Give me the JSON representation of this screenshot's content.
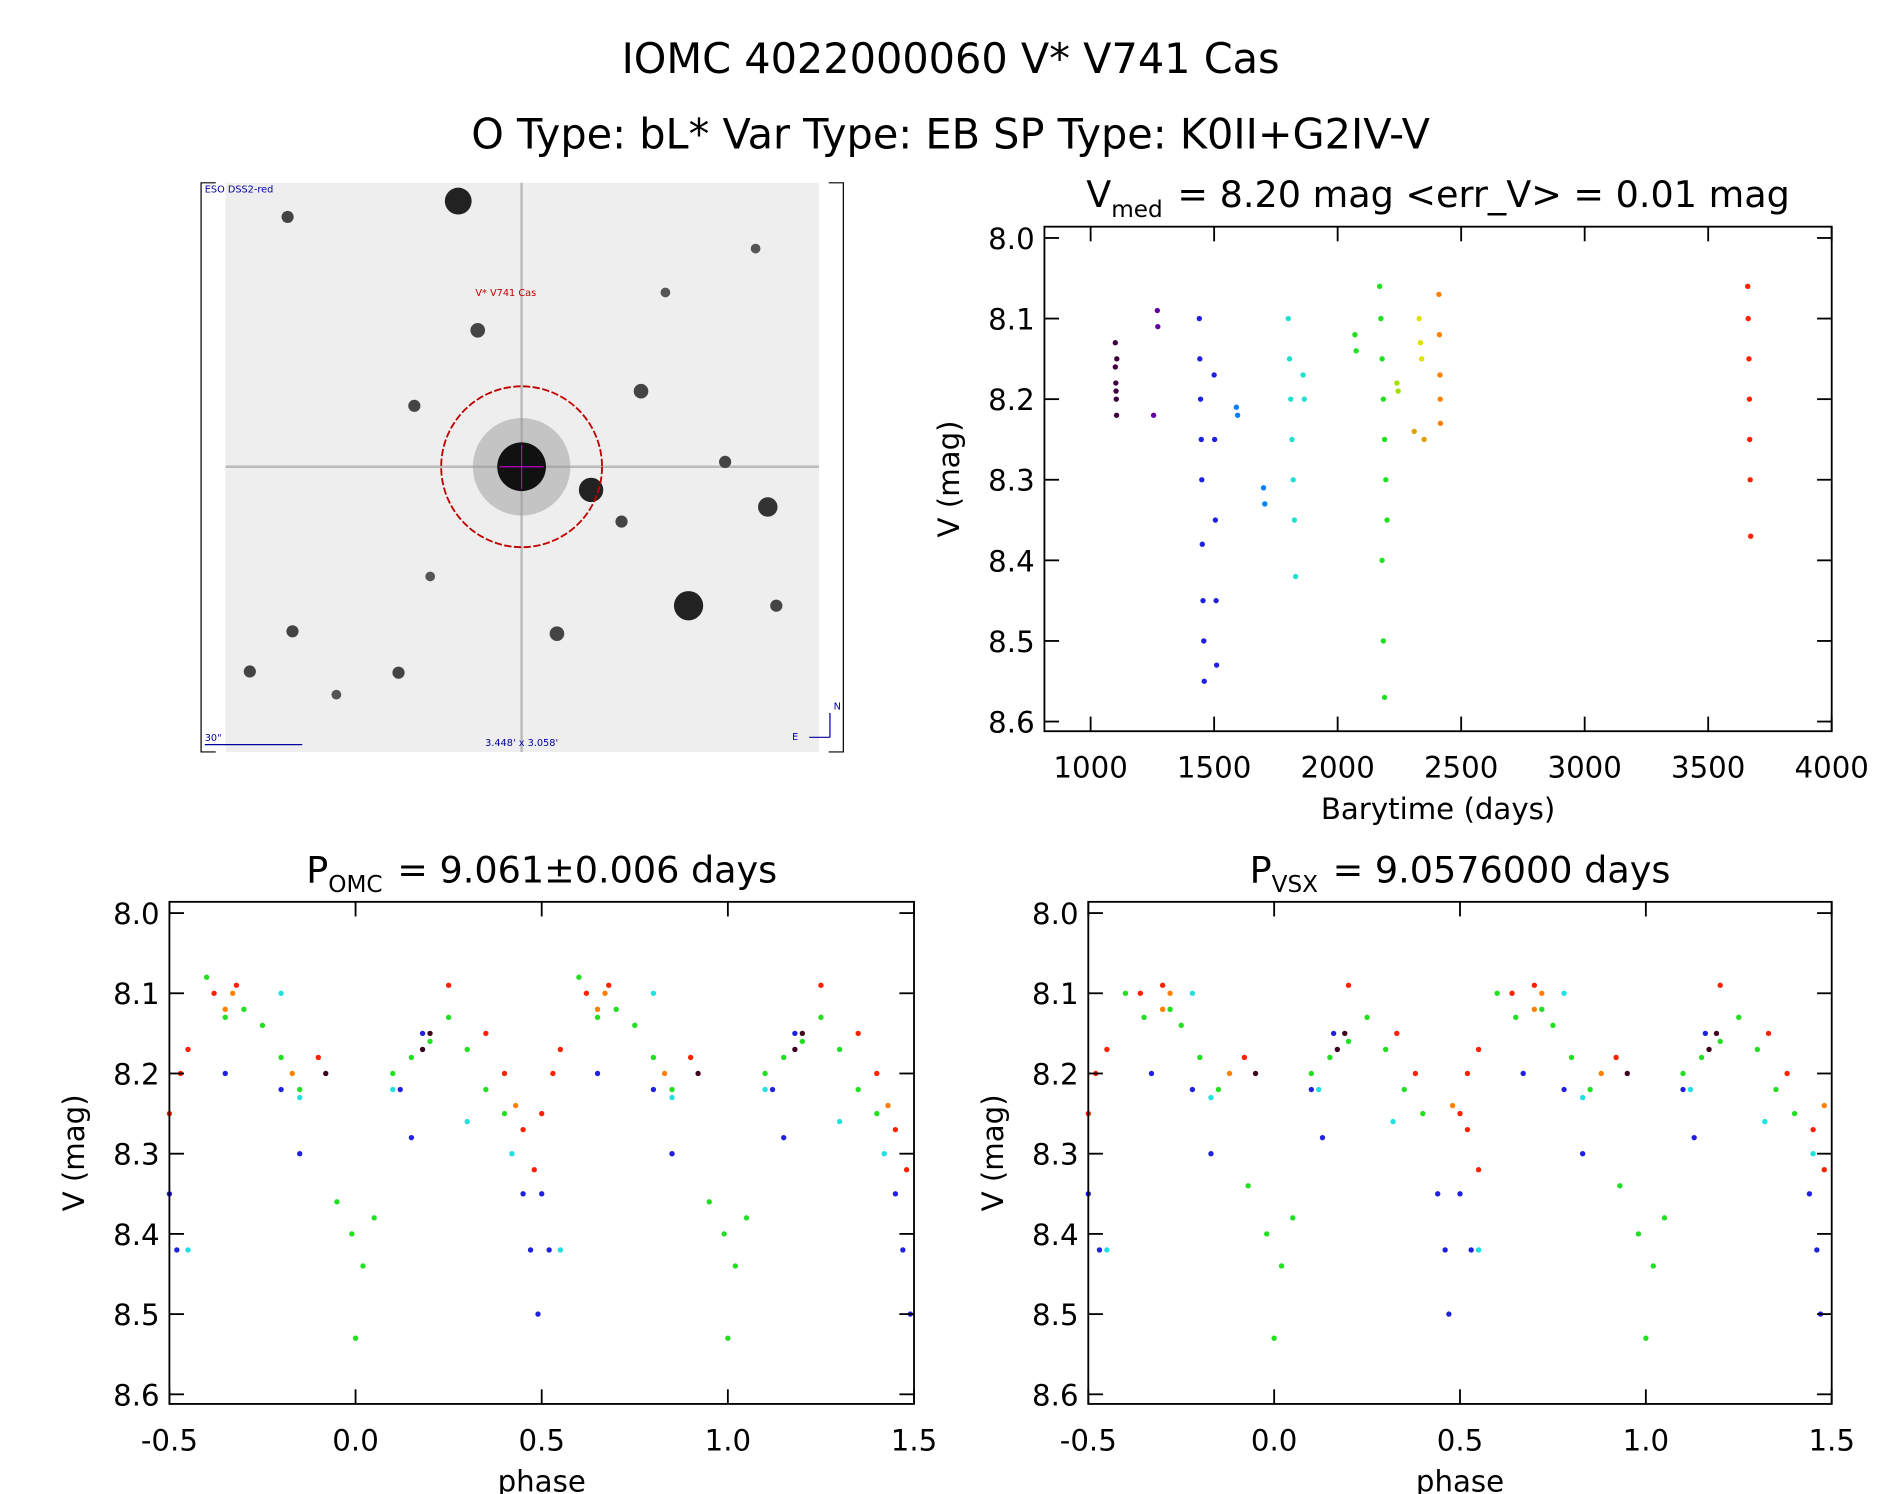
{
  "header": {
    "title": "IOMC 4022000060   V* V741 Cas",
    "subtitle": "O Type: bL*  Var Type: EB  SP Type: K0II+G2IV-V"
  },
  "finder": {
    "survey": "ESO DSS2-red",
    "target": "V* V741 Cas",
    "scale": "30\"",
    "field": "3.448' x 3.058'",
    "north": "N",
    "east": "E"
  },
  "chart_data": [
    {
      "type": "scatter",
      "title": {
        "text": "V",
        "sub": "med",
        "rest": "= 8.20 mag <err_V> = 0.01 mag"
      },
      "x_label": "Barytime (days)",
      "y_label": "V (mag)",
      "xlim": [
        813,
        4000
      ],
      "ylim": [
        8.612,
        7.986
      ],
      "xticks": [
        1000,
        1500,
        2000,
        2500,
        3000,
        3500,
        4000
      ],
      "yticks": [
        {
          "value": 8,
          "label": "8.0"
        },
        8.1,
        8.2,
        8.3,
        8.4,
        8.5,
        8.6
      ],
      "series": [
        {
          "color": "#400040",
          "x": [
            1100,
            1100,
            1102,
            1104,
            1105,
            1106,
            1103
          ],
          "values": [
            8.13,
            8.16,
            8.18,
            8.2,
            8.22,
            8.15,
            8.19
          ]
        },
        {
          "color": "#6000a0",
          "x": [
            1255,
            1270,
            1272
          ],
          "values": [
            8.22,
            8.09,
            8.11
          ]
        },
        {
          "color": "#2020e0",
          "x": [
            1440,
            1442,
            1445,
            1448,
            1450,
            1452,
            1455,
            1458,
            1460,
            1500,
            1502,
            1505,
            1508,
            1510
          ],
          "values": [
            8.1,
            8.15,
            8.2,
            8.25,
            8.3,
            8.38,
            8.45,
            8.5,
            8.55,
            8.17,
            8.25,
            8.35,
            8.45,
            8.53
          ]
        },
        {
          "color": "#0080ff",
          "x": [
            1590,
            1595,
            1700,
            1705
          ],
          "values": [
            8.21,
            8.22,
            8.31,
            8.33
          ]
        },
        {
          "color": "#20e0d0",
          "x": [
            1800,
            1805,
            1810,
            1815,
            1820,
            1825,
            1830,
            1860,
            1865
          ],
          "values": [
            8.1,
            8.15,
            8.2,
            8.25,
            8.3,
            8.35,
            8.42,
            8.17,
            8.2
          ]
        },
        {
          "color": "#20e020",
          "x": [
            2070,
            2075,
            2170,
            2175,
            2180,
            2185,
            2190,
            2195,
            2200,
            2180,
            2185,
            2190
          ],
          "values": [
            8.12,
            8.14,
            8.06,
            8.1,
            8.15,
            8.2,
            8.25,
            8.3,
            8.35,
            8.4,
            8.5,
            8.57
          ]
        },
        {
          "color": "#a0e000",
          "x": [
            2240,
            2245
          ],
          "values": [
            8.18,
            8.19
          ]
        },
        {
          "color": "#e0e000",
          "x": [
            2330,
            2335,
            2340
          ],
          "values": [
            8.1,
            8.13,
            8.15
          ]
        },
        {
          "color": "#e0a000",
          "x": [
            2310,
            2350
          ],
          "values": [
            8.24,
            8.25
          ]
        },
        {
          "color": "#ff8000",
          "x": [
            2410,
            2412,
            2414,
            2415,
            2416
          ],
          "values": [
            8.07,
            8.12,
            8.17,
            8.2,
            8.23
          ]
        },
        {
          "color": "#ff2000",
          "x": [
            3660,
            3662,
            3665,
            3667,
            3668,
            3670,
            3672
          ],
          "values": [
            8.06,
            8.1,
            8.15,
            8.2,
            8.25,
            8.3,
            8.37
          ]
        }
      ]
    },
    {
      "type": "scatter",
      "title": {
        "text": "P",
        "sub": "OMC",
        "rest": "= 9.061±0.006 days"
      },
      "x_label": "phase",
      "y_label": "V (mag)",
      "xlim": [
        -0.5,
        1.5
      ],
      "ylim": [
        8.612,
        7.986
      ],
      "xticks": [
        -0.5,
        {
          "value": 0,
          "label": "0.0"
        },
        0.5,
        {
          "value": 1,
          "label": "1.0"
        },
        1.5
      ],
      "yticks": [
        {
          "value": 8,
          "label": "8.0"
        },
        8.1,
        8.2,
        8.3,
        8.4,
        8.5,
        8.6
      ],
      "series": [
        {
          "color": "#20e020",
          "x": [
            -0.4,
            -0.35,
            -0.3,
            -0.25,
            -0.2,
            -0.15,
            -0.05,
            -0.01,
            0,
            0.02,
            0.05,
            0.1,
            0.15,
            0.2,
            0.25,
            0.3,
            0.35,
            0.4,
            0.6,
            0.65,
            0.7,
            0.75,
            0.8,
            0.85,
            0.95,
            0.99,
            1,
            1.02,
            1.05,
            1.1,
            1.15,
            1.2,
            1.25,
            1.3,
            1.35,
            1.4
          ],
          "values": [
            8.08,
            8.13,
            8.12,
            8.14,
            8.18,
            8.22,
            8.36,
            8.4,
            8.53,
            8.44,
            8.38,
            8.2,
            8.18,
            8.16,
            8.13,
            8.17,
            8.22,
            8.25,
            8.08,
            8.13,
            8.12,
            8.14,
            8.18,
            8.22,
            8.36,
            8.4,
            8.53,
            8.44,
            8.38,
            8.2,
            8.18,
            8.16,
            8.13,
            8.17,
            8.22,
            8.25
          ]
        },
        {
          "color": "#ff2000",
          "x": [
            -0.5,
            -0.47,
            -0.45,
            -0.38,
            -0.32,
            -0.1,
            0.25,
            0.35,
            0.4,
            0.45,
            0.48,
            0.5,
            0.53,
            0.55,
            0.62,
            0.68,
            0.9,
            1.25,
            1.35,
            1.4,
            1.45,
            1.48
          ],
          "values": [
            8.25,
            8.2,
            8.17,
            8.1,
            8.09,
            8.18,
            8.09,
            8.15,
            8.2,
            8.27,
            8.32,
            8.25,
            8.2,
            8.17,
            8.1,
            8.09,
            8.18,
            8.09,
            8.15,
            8.2,
            8.27,
            8.32
          ]
        },
        {
          "color": "#2020e0",
          "x": [
            -0.5,
            -0.48,
            -0.35,
            -0.2,
            -0.15,
            0.12,
            0.15,
            0.18,
            0.45,
            0.47,
            0.49,
            0.5,
            0.52,
            0.65,
            0.8,
            0.85,
            1.12,
            1.15,
            1.18,
            1.45,
            1.47,
            1.49
          ],
          "values": [
            8.35,
            8.42,
            8.2,
            8.22,
            8.3,
            8.22,
            8.28,
            8.15,
            8.35,
            8.42,
            8.5,
            8.35,
            8.42,
            8.2,
            8.22,
            8.3,
            8.22,
            8.28,
            8.15,
            8.35,
            8.42,
            8.5
          ]
        },
        {
          "color": "#20e0e0",
          "x": [
            -0.45,
            -0.2,
            -0.15,
            0.1,
            0.3,
            0.42,
            0.55,
            0.8,
            0.85,
            1.1,
            1.3,
            1.42
          ],
          "values": [
            8.42,
            8.1,
            8.23,
            8.22,
            8.26,
            8.3,
            8.42,
            8.1,
            8.23,
            8.22,
            8.26,
            8.3
          ]
        },
        {
          "color": "#ff8000",
          "x": [
            -0.35,
            -0.33,
            -0.17,
            0.43,
            0.65,
            0.67,
            0.83,
            1.43
          ],
          "values": [
            8.12,
            8.1,
            8.2,
            8.24,
            8.12,
            8.1,
            8.2,
            8.24
          ]
        },
        {
          "color": "#400020",
          "x": [
            -0.08,
            0.18,
            0.2,
            0.92,
            1.18,
            1.2
          ],
          "values": [
            8.2,
            8.17,
            8.15,
            8.2,
            8.17,
            8.15
          ]
        }
      ]
    },
    {
      "type": "scatter",
      "title": {
        "text": "P",
        "sub": "VSX",
        "rest": "= 9.0576000 days"
      },
      "x_label": "phase",
      "y_label": "V (mag)",
      "xlim": [
        -0.5,
        1.5
      ],
      "ylim": [
        8.612,
        7.986
      ],
      "xticks": [
        -0.5,
        {
          "value": 0,
          "label": "0.0"
        },
        0.5,
        {
          "value": 1,
          "label": "1.0"
        },
        1.5
      ],
      "yticks": [
        {
          "value": 8,
          "label": "8.0"
        },
        8.1,
        8.2,
        8.3,
        8.4,
        8.5,
        8.6
      ],
      "series": [
        {
          "color": "#20e020",
          "x": [
            -0.4,
            -0.35,
            -0.28,
            -0.25,
            -0.2,
            -0.15,
            -0.07,
            -0.02,
            0,
            0.02,
            0.05,
            0.1,
            0.15,
            0.2,
            0.25,
            0.3,
            0.35,
            0.4,
            0.6,
            0.65,
            0.72,
            0.75,
            0.8,
            0.85,
            0.93,
            0.98,
            1,
            1.02,
            1.05,
            1.1,
            1.15,
            1.2,
            1.25,
            1.3,
            1.35,
            1.4
          ],
          "values": [
            8.1,
            8.13,
            8.12,
            8.14,
            8.18,
            8.22,
            8.34,
            8.4,
            8.53,
            8.44,
            8.38,
            8.2,
            8.18,
            8.16,
            8.13,
            8.17,
            8.22,
            8.25,
            8.1,
            8.13,
            8.12,
            8.14,
            8.18,
            8.22,
            8.34,
            8.4,
            8.53,
            8.44,
            8.38,
            8.2,
            8.18,
            8.16,
            8.13,
            8.17,
            8.22,
            8.25
          ]
        },
        {
          "color": "#ff2000",
          "x": [
            -0.5,
            -0.48,
            -0.45,
            -0.36,
            -0.3,
            -0.08,
            0.2,
            0.33,
            0.38,
            0.52,
            0.55,
            0.5,
            0.52,
            0.55,
            0.64,
            0.7,
            0.92,
            1.2,
            1.33,
            1.38,
            1.45,
            1.48
          ],
          "values": [
            8.25,
            8.2,
            8.17,
            8.1,
            8.09,
            8.18,
            8.09,
            8.15,
            8.2,
            8.27,
            8.32,
            8.25,
            8.2,
            8.17,
            8.1,
            8.09,
            8.18,
            8.09,
            8.15,
            8.2,
            8.27,
            8.32
          ]
        },
        {
          "color": "#2020e0",
          "x": [
            -0.5,
            -0.47,
            -0.33,
            -0.22,
            -0.17,
            0.1,
            0.13,
            0.16,
            0.44,
            0.46,
            0.47,
            0.5,
            0.53,
            0.67,
            0.78,
            0.83,
            1.1,
            1.13,
            1.16,
            1.44,
            1.46,
            1.47
          ],
          "values": [
            8.35,
            8.42,
            8.2,
            8.22,
            8.3,
            8.22,
            8.28,
            8.15,
            8.35,
            8.42,
            8.5,
            8.35,
            8.42,
            8.2,
            8.22,
            8.3,
            8.22,
            8.28,
            8.15,
            8.35,
            8.42,
            8.5
          ]
        },
        {
          "color": "#20e0e0",
          "x": [
            -0.45,
            -0.22,
            -0.17,
            0.12,
            0.32,
            0.55,
            0.55,
            0.78,
            0.83,
            1.12,
            1.32,
            1.45
          ],
          "values": [
            8.42,
            8.1,
            8.23,
            8.22,
            8.26,
            8.42,
            8.42,
            8.1,
            8.23,
            8.22,
            8.26,
            8.3
          ]
        },
        {
          "color": "#ff8000",
          "x": [
            -0.3,
            -0.28,
            -0.12,
            0.48,
            0.7,
            0.72,
            0.88,
            1.48
          ],
          "values": [
            8.12,
            8.1,
            8.2,
            8.24,
            8.12,
            8.1,
            8.2,
            8.24
          ]
        },
        {
          "color": "#400020",
          "x": [
            -0.05,
            0.17,
            0.19,
            0.95,
            1.17,
            1.19
          ],
          "values": [
            8.2,
            8.17,
            8.15,
            8.2,
            8.17,
            8.15
          ]
        }
      ]
    }
  ]
}
